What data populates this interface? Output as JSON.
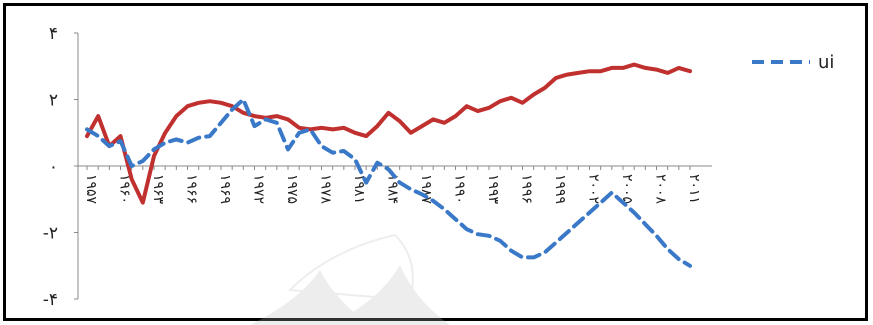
{
  "chart_data": {
    "type": "line",
    "title": "",
    "xlabel": "",
    "ylabel": "",
    "ylim": [
      -4,
      4
    ],
    "ytick_labels": [
      {
        "value": 4,
        "label": "۴"
      },
      {
        "value": 2,
        "label": "۲"
      },
      {
        "value": 0,
        "label": "۰"
      },
      {
        "value": -2,
        "label": "-۲"
      },
      {
        "value": -4,
        "label": "-۴"
      }
    ],
    "x": [
      1957,
      1958,
      1959,
      1960,
      1961,
      1962,
      1963,
      1964,
      1965,
      1966,
      1967,
      1968,
      1969,
      1970,
      1971,
      1972,
      1973,
      1974,
      1975,
      1976,
      1977,
      1978,
      1979,
      1980,
      1981,
      1982,
      1983,
      1984,
      1985,
      1986,
      1987,
      1988,
      1989,
      1990,
      1991,
      1992,
      1993,
      1994,
      1995,
      1996,
      1997,
      1998,
      1999,
      2000,
      2001,
      2002,
      2003,
      2004,
      2005,
      2006,
      2007,
      2008,
      2009,
      2010,
      2011
    ],
    "x_tick_labels": [
      "۱۹۵۷",
      "۱۹۶۰",
      "۱۹۶۳",
      "۱۹۶۶",
      "۱۹۶۹",
      "۱۹۷۲",
      "۱۹۷۵",
      "۱۹۷۸",
      "۱۹۸۱",
      "۱۹۸۴",
      "۱۹۸۷",
      "۱۹۹۰",
      "۱۹۹۳",
      "۱۹۹۶",
      "۱۹۹۹",
      "۲۰۰۲",
      "۲۰۰۵",
      "۲۰۰۸",
      "۲۰۱۱"
    ],
    "x_tick_years": [
      1957,
      1960,
      1963,
      1966,
      1969,
      1972,
      1975,
      1978,
      1981,
      1984,
      1987,
      1990,
      1993,
      1996,
      1999,
      2002,
      2005,
      2008,
      2011
    ],
    "series": [
      {
        "name": "",
        "color": "#c0302f",
        "style": "solid",
        "values": [
          0.9,
          1.5,
          0.6,
          0.9,
          -0.4,
          -1.1,
          0.3,
          1.0,
          1.5,
          1.8,
          1.9,
          1.95,
          1.9,
          1.8,
          1.6,
          1.5,
          1.45,
          1.5,
          1.4,
          1.15,
          1.1,
          1.15,
          1.1,
          1.15,
          1.0,
          0.9,
          1.2,
          1.6,
          1.35,
          1.0,
          1.2,
          1.4,
          1.3,
          1.5,
          1.8,
          1.65,
          1.75,
          1.95,
          2.05,
          1.9,
          2.15,
          2.35,
          2.65,
          2.75,
          2.8,
          2.85,
          2.85,
          2.95,
          2.95,
          3.05,
          2.95,
          2.9,
          2.8,
          2.95,
          2.85
        ]
      },
      {
        "name": "ui",
        "color": "#3a78c8",
        "style": "dashed",
        "values": [
          1.1,
          0.9,
          0.6,
          0.75,
          0.0,
          0.15,
          0.5,
          0.7,
          0.8,
          0.7,
          0.85,
          0.9,
          1.3,
          1.7,
          2.0,
          1.2,
          1.4,
          1.3,
          0.5,
          1.0,
          1.1,
          0.6,
          0.4,
          0.45,
          0.2,
          -0.5,
          0.1,
          -0.1,
          -0.5,
          -0.7,
          -0.85,
          -1.05,
          -1.3,
          -1.6,
          -1.9,
          -2.05,
          -2.1,
          -2.25,
          -2.55,
          -2.75,
          -2.75,
          -2.6,
          -2.3,
          -2.0,
          -1.7,
          -1.4,
          -1.1,
          -0.8,
          -1.1,
          -1.4,
          -1.75,
          -2.1,
          -2.5,
          -2.8,
          -3.0
        ]
      }
    ],
    "legend": {
      "position": "top-right",
      "entries": [
        "ui"
      ]
    },
    "grid": false
  }
}
